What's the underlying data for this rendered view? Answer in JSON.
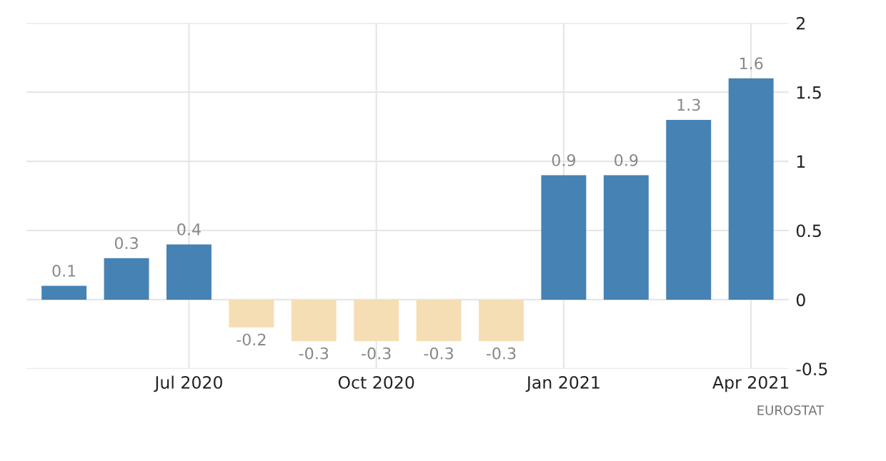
{
  "chart_data": {
    "type": "bar",
    "categories": [
      null,
      null,
      "Jul 2020",
      null,
      null,
      "Oct 2020",
      null,
      null,
      "Jan 2021",
      null,
      null,
      "Apr 2021"
    ],
    "values": [
      0.1,
      0.3,
      0.4,
      -0.2,
      -0.3,
      -0.3,
      -0.3,
      -0.3,
      0.9,
      0.9,
      1.3,
      1.6
    ],
    "colors": [
      "#4682b4",
      "#4682b4",
      "#4682b4",
      "#f5deb3",
      "#f5deb3",
      "#f5deb3",
      "#f5deb3",
      "#f5deb3",
      "#4682b4",
      "#4682b4",
      "#4682b4",
      "#4682b4"
    ],
    "ylim": [
      -0.5,
      2
    ],
    "yticks": [
      -0.5,
      0,
      0.5,
      1,
      1.5,
      2
    ],
    "grid": true,
    "data_labels": true,
    "annotations": [
      "EUROSTAT"
    ]
  }
}
